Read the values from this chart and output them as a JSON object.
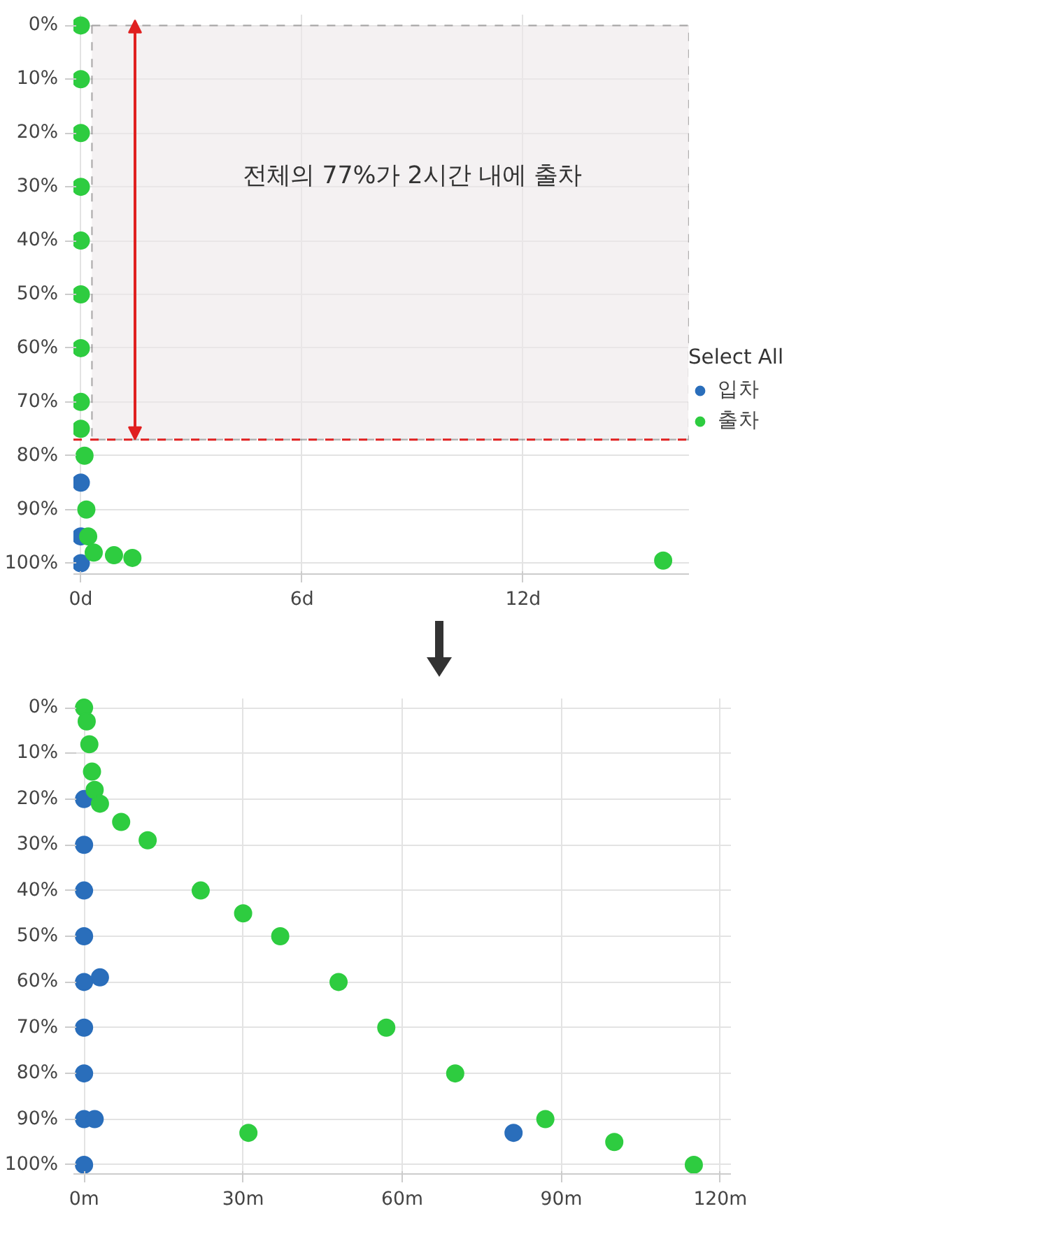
{
  "chart_data": [
    {
      "type": "scatter",
      "annotations": [
        "전체의 77%가 2시간 내에 출차"
      ],
      "legend_title": "Select All",
      "xlim": [
        -0.2,
        16.5
      ],
      "ylim": [
        102,
        -2
      ],
      "xticks": [
        {
          "value": 0,
          "label": "0d"
        },
        {
          "value": 6,
          "label": "6d"
        },
        {
          "value": 12,
          "label": "12d"
        }
      ],
      "yticks": [
        {
          "value": 0,
          "label": "0%"
        },
        {
          "value": 10,
          "label": "10%"
        },
        {
          "value": 20,
          "label": "20%"
        },
        {
          "value": 30,
          "label": "30%"
        },
        {
          "value": 40,
          "label": "40%"
        },
        {
          "value": 50,
          "label": "50%"
        },
        {
          "value": 60,
          "label": "60%"
        },
        {
          "value": 70,
          "label": "70%"
        },
        {
          "value": 80,
          "label": "80%"
        },
        {
          "value": 90,
          "label": "90%"
        },
        {
          "value": 100,
          "label": "100%"
        }
      ],
      "ref_lines": [
        {
          "axis": "y",
          "value": 77,
          "color": "#e02020",
          "line_style": "dashed"
        }
      ],
      "bands": [
        {
          "axis": "y",
          "from": 0,
          "to": 77,
          "color": "#ede8ea"
        }
      ],
      "grid": true,
      "legend": "right",
      "marker": "circle",
      "series": [
        {
          "name": "입차",
          "color": "#2a6ebb",
          "x": [
            0,
            0,
            0
          ],
          "values": [
            85,
            95,
            100
          ]
        },
        {
          "name": "출차",
          "color": "#2ecc40",
          "x": [
            0,
            0,
            0,
            0,
            0,
            0,
            0,
            0,
            0,
            0.1,
            0.15,
            0.2,
            0.35,
            0.9,
            1.4,
            15.8
          ],
          "values": [
            0,
            10,
            20,
            30,
            40,
            50,
            60,
            70,
            75,
            80,
            90,
            95,
            98,
            98.5,
            99,
            99.5
          ]
        }
      ]
    },
    {
      "type": "scatter",
      "xlim": [
        -2,
        122
      ],
      "ylim": [
        102,
        -2
      ],
      "xticks": [
        {
          "value": 0,
          "label": "0m"
        },
        {
          "value": 30,
          "label": "30m"
        },
        {
          "value": 60,
          "label": "60m"
        },
        {
          "value": 90,
          "label": "90m"
        },
        {
          "value": 120,
          "label": "120m"
        }
      ],
      "yticks": [
        {
          "value": 0,
          "label": "0%"
        },
        {
          "value": 10,
          "label": "10%"
        },
        {
          "value": 20,
          "label": "20%"
        },
        {
          "value": 30,
          "label": "30%"
        },
        {
          "value": 40,
          "label": "40%"
        },
        {
          "value": 50,
          "label": "50%"
        },
        {
          "value": 60,
          "label": "60%"
        },
        {
          "value": 70,
          "label": "70%"
        },
        {
          "value": 80,
          "label": "80%"
        },
        {
          "value": 90,
          "label": "90%"
        },
        {
          "value": 100,
          "label": "100%"
        }
      ],
      "grid": true,
      "marker": "circle",
      "series": [
        {
          "color": "#2a6ebb",
          "x": [
            0,
            0,
            0,
            0,
            0,
            0,
            0,
            0,
            0,
            3,
            2,
            81
          ],
          "values": [
            20,
            30,
            40,
            50,
            60,
            70,
            80,
            90,
            100,
            59,
            90,
            93
          ]
        },
        {
          "color": "#2ecc40",
          "x": [
            0,
            0.5,
            1,
            1.5,
            2,
            3,
            7,
            12,
            22,
            30,
            37,
            48,
            57,
            70,
            87,
            100,
            115,
            31
          ],
          "values": [
            0,
            3,
            8,
            14,
            18,
            21,
            25,
            29,
            40,
            45,
            50,
            60,
            70,
            80,
            90,
            95,
            100,
            93
          ]
        }
      ]
    }
  ]
}
